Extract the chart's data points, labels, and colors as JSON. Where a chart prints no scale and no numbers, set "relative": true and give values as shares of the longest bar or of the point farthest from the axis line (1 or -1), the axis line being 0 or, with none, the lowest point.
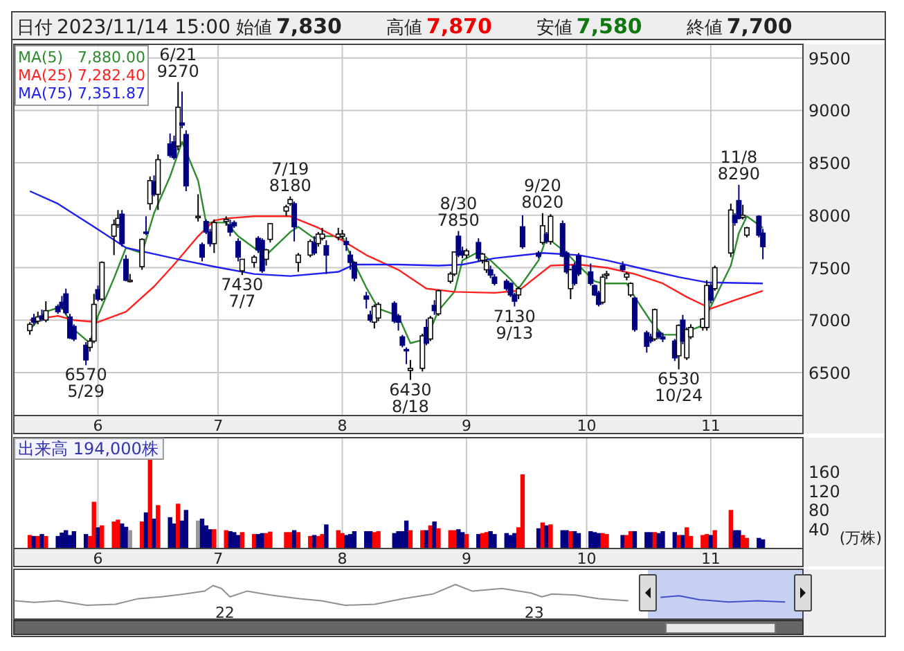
{
  "chart_data": [
    {
      "type": "candlestick",
      "annotations": [
        "日付 2023/11/14 15:00",
        "始値 7,830",
        "高値 7,870",
        "安値 7,580",
        "終値 7,700",
        {
          "text": "6570\n5/29",
          "x": "2023-05-29",
          "y": 6570
        },
        {
          "text": "6/21\n9270",
          "x": "2023-06-21",
          "y": 9270
        },
        {
          "text": "7430\n7/7",
          "x": "2023-07-07",
          "y": 7430
        },
        {
          "text": "7/19\n8180",
          "x": "2023-07-19",
          "y": 8180
        },
        {
          "text": "6430\n8/18",
          "x": "2023-08-18",
          "y": 6430
        },
        {
          "text": "8/30\n7850",
          "x": "2023-08-30",
          "y": 7850
        },
        {
          "text": "7130\n9/13",
          "x": "2023-09-13",
          "y": 7130
        },
        {
          "text": "9/20\n8020",
          "x": "2023-09-20",
          "y": 8020
        },
        {
          "text": "6530\n10/24",
          "x": "2023-10-24",
          "y": 6530
        },
        {
          "text": "11/8\n8290",
          "x": "2023-11-08",
          "y": 8290
        }
      ],
      "x": [
        "2023-05-15",
        "2023-05-16",
        "2023-05-17",
        "2023-05-18",
        "2023-05-19",
        "2023-05-22",
        "2023-05-23",
        "2023-05-24",
        "2023-05-25",
        "2023-05-26",
        "2023-05-29",
        "2023-05-30",
        "2023-05-31",
        "2023-06-01",
        "2023-06-02",
        "2023-06-05",
        "2023-06-06",
        "2023-06-07",
        "2023-06-08",
        "2023-06-09",
        "2023-06-12",
        "2023-06-13",
        "2023-06-14",
        "2023-06-15",
        "2023-06-16",
        "2023-06-19",
        "2023-06-20",
        "2023-06-21",
        "2023-06-22",
        "2023-06-23",
        "2023-06-26",
        "2023-06-27",
        "2023-06-28",
        "2023-06-29",
        "2023-06-30",
        "2023-07-03",
        "2023-07-04",
        "2023-07-05",
        "2023-07-06",
        "2023-07-07",
        "2023-07-10",
        "2023-07-11",
        "2023-07-12",
        "2023-07-13",
        "2023-07-14",
        "2023-07-18",
        "2023-07-19",
        "2023-07-20",
        "2023-07-21",
        "2023-07-24",
        "2023-07-25",
        "2023-07-26",
        "2023-07-27",
        "2023-07-28",
        "2023-07-31",
        "2023-08-01",
        "2023-08-02",
        "2023-08-03",
        "2023-08-04",
        "2023-08-07",
        "2023-08-08",
        "2023-08-09",
        "2023-08-10",
        "2023-08-14",
        "2023-08-15",
        "2023-08-16",
        "2023-08-17",
        "2023-08-18",
        "2023-08-21",
        "2023-08-22",
        "2023-08-23",
        "2023-08-24",
        "2023-08-25",
        "2023-08-28",
        "2023-08-29",
        "2023-08-30",
        "2023-08-31",
        "2023-09-01",
        "2023-09-04",
        "2023-09-05",
        "2023-09-06",
        "2023-09-07",
        "2023-09-08",
        "2023-09-11",
        "2023-09-12",
        "2023-09-13",
        "2023-09-14",
        "2023-09-15",
        "2023-09-19",
        "2023-09-20",
        "2023-09-21",
        "2023-09-22",
        "2023-09-25",
        "2023-09-26",
        "2023-09-27",
        "2023-09-28",
        "2023-09-29",
        "2023-10-02",
        "2023-10-03",
        "2023-10-04",
        "2023-10-05",
        "2023-10-06",
        "2023-10-10",
        "2023-10-11",
        "2023-10-12",
        "2023-10-13",
        "2023-10-16",
        "2023-10-17",
        "2023-10-18",
        "2023-10-19",
        "2023-10-20",
        "2023-10-23",
        "2023-10-24",
        "2023-10-25",
        "2023-10-26",
        "2023-10-27",
        "2023-10-30",
        "2023-10-31",
        "2023-11-01",
        "2023-11-02",
        "2023-11-06",
        "2023-11-07",
        "2023-11-08",
        "2023-11-09",
        "2023-11-10",
        "2023-11-13",
        "2023-11-14"
      ],
      "ohlc": [
        [
          6900,
          6980,
          6860,
          6960
        ],
        [
          7020,
          7060,
          6950,
          6980
        ],
        [
          6990,
          7080,
          6960,
          7030
        ],
        [
          7040,
          7100,
          6990,
          7010
        ],
        [
          7000,
          7180,
          6980,
          7090
        ],
        [
          7130,
          7150,
          7060,
          7080
        ],
        [
          7170,
          7230,
          7100,
          7120
        ],
        [
          7250,
          7300,
          7050,
          7070
        ],
        [
          7030,
          7060,
          6820,
          6830
        ],
        [
          6940,
          6960,
          6800,
          6820
        ],
        [
          6760,
          6790,
          6570,
          6620
        ],
        [
          6740,
          6830,
          6700,
          6800
        ],
        [
          6800,
          7250,
          6780,
          7150
        ],
        [
          7290,
          7330,
          7180,
          7200
        ],
        [
          7200,
          7560,
          7180,
          7550
        ],
        [
          7800,
          7960,
          7620,
          7910
        ],
        [
          7910,
          8050,
          7880,
          7970
        ],
        [
          8010,
          8050,
          7700,
          7730
        ],
        [
          7580,
          7620,
          7370,
          7380
        ],
        [
          7380,
          7440,
          7360,
          7380
        ],
        [
          7510,
          7780,
          7480,
          7770
        ],
        [
          7840,
          7990,
          7810,
          7830
        ],
        [
          8110,
          8370,
          8050,
          8330
        ],
        [
          8320,
          8380,
          8180,
          8200
        ],
        [
          8200,
          8580,
          8050,
          8530
        ],
        [
          8680,
          8780,
          8550,
          8570
        ],
        [
          8700,
          8760,
          8530,
          8550
        ],
        [
          8660,
          9270,
          8620,
          9030
        ],
        [
          8880,
          9180,
          8830,
          8860
        ],
        [
          8770,
          8810,
          8230,
          8280
        ],
        [
          7990,
          8200,
          7940,
          7990
        ],
        [
          7720,
          7740,
          7560,
          7600
        ],
        [
          7940,
          7960,
          7820,
          7840
        ],
        [
          7840,
          7870,
          7700,
          7730
        ],
        [
          7730,
          7960,
          7640,
          7930
        ],
        [
          7940,
          7990,
          7900,
          7960
        ],
        [
          7910,
          7960,
          7800,
          7840
        ],
        [
          7930,
          7950,
          7880,
          7900
        ],
        [
          7750,
          7780,
          7560,
          7600
        ],
        [
          7470,
          7580,
          7430,
          7580
        ],
        [
          7550,
          7620,
          7500,
          7600
        ],
        [
          7780,
          7800,
          7640,
          7670
        ],
        [
          7760,
          7780,
          7450,
          7470
        ],
        [
          7580,
          7680,
          7520,
          7670
        ],
        [
          7770,
          7920,
          7740,
          7920
        ],
        [
          8040,
          8100,
          7990,
          8080
        ],
        [
          8110,
          8180,
          8090,
          8150
        ],
        [
          8110,
          8130,
          7750,
          7890
        ],
        [
          7550,
          7640,
          7460,
          7620
        ],
        [
          7620,
          7770,
          7600,
          7750
        ],
        [
          7740,
          7800,
          7620,
          7640
        ],
        [
          7730,
          7840,
          7700,
          7820
        ],
        [
          7780,
          7880,
          7760,
          7820
        ],
        [
          7710,
          7760,
          7440,
          7620
        ],
        [
          7790,
          7880,
          7760,
          7820
        ],
        [
          7800,
          7860,
          7770,
          7820
        ],
        [
          7750,
          7790,
          7660,
          7720
        ],
        [
          7620,
          7660,
          7480,
          7550
        ],
        [
          7550,
          7560,
          7370,
          7400
        ],
        [
          7230,
          7270,
          7110,
          7200
        ],
        [
          7050,
          7090,
          6980,
          7000
        ],
        [
          6980,
          7150,
          6920,
          7130
        ],
        [
          7020,
          7170,
          6990,
          7150
        ],
        [
          7160,
          7180,
          6970,
          6990
        ],
        [
          7040,
          7060,
          6900,
          6980
        ],
        [
          6840,
          6860,
          6740,
          6760
        ],
        [
          6720,
          6740,
          6580,
          6710
        ],
        [
          6520,
          6620,
          6430,
          6540
        ],
        [
          6540,
          6870,
          6510,
          6850
        ],
        [
          6930,
          7010,
          6760,
          6780
        ],
        [
          6820,
          7040,
          6800,
          7020
        ],
        [
          7140,
          7190,
          7050,
          7090
        ],
        [
          7060,
          7290,
          7040,
          7280
        ],
        [
          7370,
          7460,
          7350,
          7440
        ],
        [
          7440,
          7650,
          7420,
          7650
        ],
        [
          7800,
          7850,
          7600,
          7620
        ],
        [
          7660,
          7700,
          7590,
          7620
        ],
        [
          7620,
          7680,
          7590,
          7660
        ],
        [
          7740,
          7780,
          7560,
          7590
        ],
        [
          7570,
          7640,
          7540,
          7630
        ],
        [
          7480,
          7580,
          7450,
          7560
        ],
        [
          7480,
          7520,
          7400,
          7430
        ],
        [
          7410,
          7440,
          7330,
          7350
        ],
        [
          7370,
          7390,
          7280,
          7300
        ],
        [
          7350,
          7360,
          7220,
          7240
        ],
        [
          7240,
          7260,
          7130,
          7180
        ],
        [
          7240,
          7320,
          7200,
          7300
        ],
        [
          7890,
          8000,
          7680,
          7700
        ],
        [
          7640,
          7660,
          7590,
          7610
        ],
        [
          7740,
          8020,
          7720,
          7900
        ],
        [
          7820,
          7840,
          7730,
          7750
        ],
        [
          7750,
          8010,
          7720,
          7990
        ],
        [
          7920,
          7950,
          7600,
          7610
        ],
        [
          7640,
          7660,
          7440,
          7460
        ],
        [
          7300,
          7490,
          7200,
          7480
        ],
        [
          7520,
          7550,
          7330,
          7350
        ],
        [
          7610,
          7640,
          7420,
          7440
        ],
        [
          7460,
          7540,
          7330,
          7350
        ],
        [
          7330,
          7340,
          7230,
          7240
        ],
        [
          7260,
          7280,
          7130,
          7150
        ],
        [
          7170,
          7440,
          7150,
          7410
        ],
        [
          7430,
          7470,
          7390,
          7440
        ],
        [
          7520,
          7560,
          7460,
          7480
        ],
        [
          7410,
          7460,
          7380,
          7440
        ],
        [
          7240,
          7360,
          7220,
          7350
        ],
        [
          7210,
          7220,
          6890,
          6910
        ],
        [
          6880,
          6900,
          6690,
          6750
        ],
        [
          6840,
          6870,
          6780,
          6800
        ],
        [
          6820,
          7110,
          6800,
          7100
        ],
        [
          6880,
          6900,
          6820,
          6840
        ],
        [
          6840,
          6880,
          6790,
          6820
        ],
        [
          6800,
          6820,
          6610,
          6640
        ],
        [
          6660,
          6960,
          6530,
          6950
        ],
        [
          7000,
          7050,
          6770,
          6800
        ],
        [
          6640,
          6930,
          6620,
          6910
        ],
        [
          6840,
          6960,
          6820,
          6930
        ],
        [
          6930,
          7020,
          6900,
          7010
        ],
        [
          6930,
          7380,
          6900,
          7330
        ],
        [
          7330,
          7350,
          7160,
          7190
        ],
        [
          7300,
          7520,
          7280,
          7500
        ],
        [
          7640,
          8110,
          7600,
          8050
        ],
        [
          8000,
          8020,
          7900,
          7930
        ],
        [
          8140,
          8290,
          7960,
          7970
        ],
        [
          7980,
          8100,
          7960,
          8000
        ],
        [
          7810,
          7890,
          7790,
          7880
        ],
        [
          7990,
          8000,
          7790,
          7810
        ],
        [
          7830,
          7870,
          7580,
          7700
        ]
      ],
      "colors": [
        "#ffffff",
        "#000080",
        "#ffffff",
        "#000080",
        "#ffffff",
        "#000080",
        "#000080",
        "#000080",
        "#000080",
        "#000080",
        "#000080",
        "#ffffff",
        "#ffffff",
        "#000080",
        "#ffffff",
        "#ffffff",
        "#ffffff",
        "#000080",
        "#000080",
        "#ffffff",
        "#ffffff",
        "#000080",
        "#ffffff",
        "#000080",
        "#ffffff",
        "#000080",
        "#000080",
        "#ffffff",
        "#000080",
        "#000080",
        "#ffffff",
        "#000080",
        "#000080",
        "#000080",
        "#ffffff",
        "#ffffff",
        "#000080",
        "#000080",
        "#000080",
        "#ffffff",
        "#ffffff",
        "#000080",
        "#000080",
        "#ffffff",
        "#ffffff",
        "#ffffff",
        "#ffffff",
        "#000080",
        "#ffffff",
        "#ffffff",
        "#000080",
        "#ffffff",
        "#ffffff",
        "#000080",
        "#ffffff",
        "#ffffff",
        "#000080",
        "#000080",
        "#000080",
        "#000080",
        "#000080",
        "#ffffff",
        "#ffffff",
        "#000080",
        "#000080",
        "#000080",
        "#000080",
        "#ffffff",
        "#ffffff",
        "#000080",
        "#ffffff",
        "#000080",
        "#ffffff",
        "#ffffff",
        "#ffffff",
        "#000080",
        "#000080",
        "#ffffff",
        "#000080",
        "#ffffff",
        "#ffffff",
        "#000080",
        "#000080",
        "#000080",
        "#000080",
        "#000080",
        "#ffffff",
        "#000080",
        "#000080",
        "#ffffff",
        "#000080",
        "#ffffff",
        "#000080",
        "#000080",
        "#ffffff",
        "#000080",
        "#000080",
        "#000080",
        "#000080",
        "#000080",
        "#ffffff",
        "#ffffff",
        "#000080",
        "#ffffff",
        "#ffffff",
        "#000080",
        "#000080",
        "#000080",
        "#ffffff",
        "#000080",
        "#000080",
        "#000080",
        "#ffffff",
        "#000080",
        "#ffffff",
        "#ffffff",
        "#ffffff",
        "#ffffff",
        "#000080",
        "#ffffff",
        "#ffffff",
        "#000080",
        "#000080",
        "#ffffff",
        "#ffffff",
        "#000080",
        "#000080"
      ],
      "series": [
        {
          "name": "MA(5) 7,880.00",
          "type": "line",
          "color": "#2e8b2e",
          "x": [
            "2023-05-15",
            "2023-05-19",
            "2023-05-23",
            "2023-05-26",
            "2023-05-30",
            "2023-06-01",
            "2023-06-05",
            "2023-06-08",
            "2023-06-12",
            "2023-06-15",
            "2023-06-19",
            "2023-06-22",
            "2023-06-26",
            "2023-06-28",
            "2023-07-03",
            "2023-07-06",
            "2023-07-11",
            "2023-07-13",
            "2023-07-19",
            "2023-07-21",
            "2023-07-25",
            "2023-07-28",
            "2023-08-01",
            "2023-08-03",
            "2023-08-07",
            "2023-08-10",
            "2023-08-15",
            "2023-08-18",
            "2023-08-22",
            "2023-08-25",
            "2023-08-29",
            "2023-08-31",
            "2023-09-04",
            "2023-09-07",
            "2023-09-12",
            "2023-09-14",
            "2023-09-19",
            "2023-09-21",
            "2023-09-26",
            "2023-09-29",
            "2023-10-03",
            "2023-10-05",
            "2023-10-11",
            "2023-10-13",
            "2023-10-17",
            "2023-10-20",
            "2023-10-24",
            "2023-10-30",
            "2023-11-01",
            "2023-11-06",
            "2023-11-08",
            "2023-11-10",
            "2023-11-14"
          ],
          "values": [
            6910,
            7080,
            7130,
            6910,
            6780,
            7040,
            7400,
            7690,
            7640,
            8020,
            8370,
            8700,
            8330,
            7930,
            7930,
            7800,
            7660,
            7620,
            7840,
            7890,
            7780,
            7800,
            7800,
            7620,
            7310,
            7110,
            7040,
            6780,
            6820,
            7090,
            7270,
            7570,
            7650,
            7570,
            7390,
            7300,
            7570,
            7790,
            7640,
            7520,
            7370,
            7350,
            7350,
            7220,
            6990,
            6860,
            6860,
            6950,
            7130,
            7520,
            7830,
            7990,
            7880
          ]
        },
        {
          "name": "MA(25) 7,282.40",
          "type": "line",
          "color": "#ff2020",
          "x": [
            "2023-05-15",
            "2023-05-22",
            "2023-05-26",
            "2023-06-01",
            "2023-06-08",
            "2023-06-15",
            "2023-06-20",
            "2023-06-26",
            "2023-06-30",
            "2023-07-03",
            "2023-07-10",
            "2023-07-19",
            "2023-07-26",
            "2023-08-01",
            "2023-08-07",
            "2023-08-15",
            "2023-08-22",
            "2023-08-29",
            "2023-09-08",
            "2023-09-14",
            "2023-09-22",
            "2023-09-29",
            "2023-10-06",
            "2023-10-13",
            "2023-10-20",
            "2023-10-26",
            "2023-11-01",
            "2023-11-07",
            "2023-11-14"
          ],
          "values": [
            7000,
            7040,
            7000,
            6980,
            7080,
            7320,
            7530,
            7800,
            7950,
            7970,
            7990,
            7990,
            7880,
            7760,
            7620,
            7480,
            7300,
            7270,
            7260,
            7280,
            7520,
            7530,
            7500,
            7440,
            7350,
            7220,
            7110,
            7190,
            7280
          ]
        },
        {
          "name": "MA(75) 7,351.87",
          "type": "line",
          "color": "#2020f0",
          "x": [
            "2023-05-15",
            "2023-05-22",
            "2023-05-31",
            "2023-06-08",
            "2023-06-21",
            "2023-06-30",
            "2023-07-10",
            "2023-07-19",
            "2023-07-31",
            "2023-08-04",
            "2023-08-15",
            "2023-08-25",
            "2023-08-31",
            "2023-09-08",
            "2023-09-20",
            "2023-09-29",
            "2023-10-06",
            "2023-10-16",
            "2023-10-24",
            "2023-10-31",
            "2023-11-14"
          ],
          "values": [
            8230,
            8110,
            7890,
            7690,
            7580,
            7510,
            7440,
            7420,
            7460,
            7530,
            7530,
            7520,
            7530,
            7590,
            7640,
            7620,
            7570,
            7480,
            7410,
            7360,
            7350
          ]
        }
      ],
      "legend": "top left",
      "grid": true,
      "xlim": [
        "2023-05-11",
        "2023-11-24"
      ],
      "xticks": [
        {
          "value": "2023-06-01",
          "label": "6"
        },
        {
          "value": "2023-07-01",
          "label": "7"
        },
        {
          "value": "2023-08-01",
          "label": "8"
        },
        {
          "value": "2023-09-01",
          "label": "9"
        },
        {
          "value": "2023-10-01",
          "label": "10"
        },
        {
          "value": "2023-11-01",
          "label": "11"
        }
      ],
      "ylim": [
        6090,
        9630
      ],
      "yticks": [
        6500,
        7000,
        7500,
        8000,
        8500,
        9000,
        9500
      ]
    },
    {
      "type": "bar",
      "title": "出来高 194,000株",
      "ylabel": "(万株)",
      "x": [
        "2023-05-15",
        "2023-05-16",
        "2023-05-17",
        "2023-05-18",
        "2023-05-19",
        "2023-05-22",
        "2023-05-23",
        "2023-05-24",
        "2023-05-25",
        "2023-05-26",
        "2023-05-29",
        "2023-05-30",
        "2023-05-31",
        "2023-06-01",
        "2023-06-02",
        "2023-06-05",
        "2023-06-06",
        "2023-06-07",
        "2023-06-08",
        "2023-06-09",
        "2023-06-12",
        "2023-06-13",
        "2023-06-14",
        "2023-06-15",
        "2023-06-16",
        "2023-06-19",
        "2023-06-20",
        "2023-06-21",
        "2023-06-22",
        "2023-06-23",
        "2023-06-26",
        "2023-06-27",
        "2023-06-28",
        "2023-06-29",
        "2023-06-30",
        "2023-07-03",
        "2023-07-04",
        "2023-07-05",
        "2023-07-06",
        "2023-07-07",
        "2023-07-10",
        "2023-07-11",
        "2023-07-12",
        "2023-07-13",
        "2023-07-14",
        "2023-07-18",
        "2023-07-19",
        "2023-07-20",
        "2023-07-21",
        "2023-07-24",
        "2023-07-25",
        "2023-07-26",
        "2023-07-27",
        "2023-07-28",
        "2023-07-31",
        "2023-08-01",
        "2023-08-02",
        "2023-08-03",
        "2023-08-04",
        "2023-08-07",
        "2023-08-08",
        "2023-08-09",
        "2023-08-10",
        "2023-08-14",
        "2023-08-15",
        "2023-08-16",
        "2023-08-17",
        "2023-08-18",
        "2023-08-21",
        "2023-08-22",
        "2023-08-23",
        "2023-08-24",
        "2023-08-25",
        "2023-08-28",
        "2023-08-29",
        "2023-08-30",
        "2023-08-31",
        "2023-09-01",
        "2023-09-04",
        "2023-09-05",
        "2023-09-06",
        "2023-09-07",
        "2023-09-08",
        "2023-09-11",
        "2023-09-12",
        "2023-09-13",
        "2023-09-14",
        "2023-09-15",
        "2023-09-19",
        "2023-09-20",
        "2023-09-21",
        "2023-09-22",
        "2023-09-25",
        "2023-09-26",
        "2023-09-27",
        "2023-09-28",
        "2023-09-29",
        "2023-10-02",
        "2023-10-03",
        "2023-10-04",
        "2023-10-05",
        "2023-10-06",
        "2023-10-10",
        "2023-10-11",
        "2023-10-12",
        "2023-10-13",
        "2023-10-16",
        "2023-10-17",
        "2023-10-18",
        "2023-10-19",
        "2023-10-20",
        "2023-10-23",
        "2023-10-24",
        "2023-10-25",
        "2023-10-26",
        "2023-10-27",
        "2023-10-30",
        "2023-10-31",
        "2023-11-01",
        "2023-11-02",
        "2023-11-06",
        "2023-11-07",
        "2023-11-08",
        "2023-11-09",
        "2023-11-10",
        "2023-11-13",
        "2023-11-14"
      ],
      "values": [
        28,
        26,
        26,
        30,
        26,
        26,
        33,
        38,
        28,
        36,
        30,
        26,
        97,
        44,
        48,
        56,
        60,
        52,
        45,
        38,
        56,
        75,
        190,
        62,
        90,
        65,
        52,
        93,
        58,
        80,
        58,
        62,
        48,
        40,
        40,
        38,
        36,
        34,
        28,
        34,
        30,
        30,
        32,
        32,
        35,
        34,
        34,
        38,
        34,
        26,
        28,
        26,
        30,
        50,
        38,
        32,
        28,
        30,
        36,
        36,
        36,
        34,
        36,
        32,
        36,
        36,
        58,
        38,
        38,
        38,
        48,
        56,
        42,
        38,
        38,
        40,
        34,
        30,
        30,
        32,
        34,
        36,
        30,
        32,
        28,
        32,
        44,
        154,
        42,
        54,
        48,
        50,
        38,
        38,
        36,
        36,
        32,
        36,
        34,
        32,
        32,
        30,
        28,
        28,
        36,
        36,
        34,
        34,
        34,
        32,
        36,
        34,
        28,
        28,
        44,
        26,
        28,
        30,
        28,
        38,
        80,
        38,
        38,
        28,
        22,
        22,
        19
      ],
      "colors": [
        "#ff0000",
        "#000080",
        "#ff0000",
        "#000080",
        "#ff0000",
        "#000080",
        "#000080",
        "#000080",
        "#000080",
        "#000080",
        "#000080",
        "#ff0000",
        "#ff0000",
        "#000080",
        "#ff0000",
        "#ff0000",
        "#ff0000",
        "#000080",
        "#000080",
        "#999999",
        "#ff0000",
        "#000080",
        "#ff0000",
        "#000080",
        "#ff0000",
        "#000080",
        "#000080",
        "#ff0000",
        "#000080",
        "#000080",
        "#999999",
        "#000080",
        "#000080",
        "#000080",
        "#ff0000",
        "#ff0000",
        "#000080",
        "#000080",
        "#000080",
        "#ff0000",
        "#ff0000",
        "#000080",
        "#000080",
        "#ff0000",
        "#ff0000",
        "#ff0000",
        "#ff0000",
        "#000080",
        "#ff0000",
        "#ff0000",
        "#000080",
        "#ff0000",
        "#ff0000",
        "#000080",
        "#ff0000",
        "#ff0000",
        "#000080",
        "#000080",
        "#000080",
        "#000080",
        "#000080",
        "#ff0000",
        "#ff0000",
        "#000080",
        "#000080",
        "#000080",
        "#000080",
        "#ff0000",
        "#ff0000",
        "#000080",
        "#ff0000",
        "#000080",
        "#ff0000",
        "#ff0000",
        "#ff0000",
        "#000080",
        "#000080",
        "#ff0000",
        "#000080",
        "#ff0000",
        "#ff0000",
        "#000080",
        "#000080",
        "#000080",
        "#000080",
        "#000080",
        "#ff0000",
        "#ff0000",
        "#000080",
        "#ff0000",
        "#000080",
        "#ff0000",
        "#000080",
        "#000080",
        "#ff0000",
        "#000080",
        "#000080",
        "#000080",
        "#000080",
        "#000080",
        "#ff0000",
        "#ff0000",
        "#000080",
        "#ff0000",
        "#ff0000",
        "#000080",
        "#000080",
        "#000080",
        "#ff0000",
        "#000080",
        "#000080",
        "#000080",
        "#ff0000",
        "#000080",
        "#ff0000",
        "#ff0000",
        "#ff0000",
        "#ff0000",
        "#000080",
        "#ff0000",
        "#ff0000",
        "#000080",
        "#000080",
        "#ff0000",
        "#ff0000",
        "#000080",
        "#000080"
      ],
      "grid": "x",
      "xlim": [
        "2023-05-11",
        "2023-11-24"
      ],
      "xticks": [
        {
          "value": "2023-06-01",
          "label": "6"
        },
        {
          "value": "2023-07-01",
          "label": "7"
        },
        {
          "value": "2023-08-01",
          "label": "8"
        },
        {
          "value": "2023-09-01",
          "label": "9"
        },
        {
          "value": "2023-10-01",
          "label": "10"
        },
        {
          "value": "2023-11-01",
          "label": "11"
        }
      ],
      "ylim": [
        0,
        230
      ],
      "yticks": [
        40,
        80,
        120,
        160
      ]
    },
    {
      "type": "line",
      "relative": true,
      "series": [
        {
          "type": "line",
          "color": "#909090",
          "x": [
            "2021-04-28",
            "2021-05-21",
            "2021-06-18",
            "2021-07-22",
            "2021-08-25",
            "2021-09-21",
            "2021-10-18",
            "2021-11-14",
            "2021-12-08",
            "2021-12-18",
            "2021-12-28",
            "2022-01-07",
            "2022-01-27",
            "2022-02-24",
            "2022-03-30",
            "2022-04-25",
            "2022-05-23",
            "2022-06-27",
            "2022-07-30",
            "2022-09-03",
            "2022-09-30",
            "2022-10-20",
            "2022-11-24",
            "2022-12-28",
            "2023-01-10",
            "2023-01-22",
            "2023-02-19",
            "2023-03-18",
            "2023-04-22"
          ],
          "values": [
            0.22,
            0.14,
            0.22,
            0,
            0.05,
            0.32,
            0.41,
            0.54,
            0.68,
            0.95,
            0.81,
            0.41,
            0.68,
            0.49,
            0.32,
            0.22,
            0,
            0.05,
            0.32,
            0.54,
            1,
            0.68,
            0.81,
            0.59,
            0.41,
            0.54,
            0.49,
            0.32,
            0.22
          ]
        },
        {
          "type": "line",
          "color": "#4050c8",
          "x": [
            "2023-05-30",
            "2023-06-21",
            "2023-07-15",
            "2023-08-18",
            "2023-09-21",
            "2023-10-24"
          ],
          "values": [
            0.38,
            0.46,
            0.27,
            0.16,
            0.22,
            0.16
          ]
        }
      ],
      "bands": [
        {
          "axis": "x",
          "from": "2023-05-15",
          "to": "2023-11-14",
          "color": "#b8c4f0"
        }
      ],
      "xlim": [
        "2021-04-27",
        "2023-11-14"
      ],
      "xticks": [
        {
          "value": "2022-01-01",
          "label": "22"
        },
        {
          "value": "2023-01-01",
          "label": "23"
        }
      ]
    }
  ]
}
